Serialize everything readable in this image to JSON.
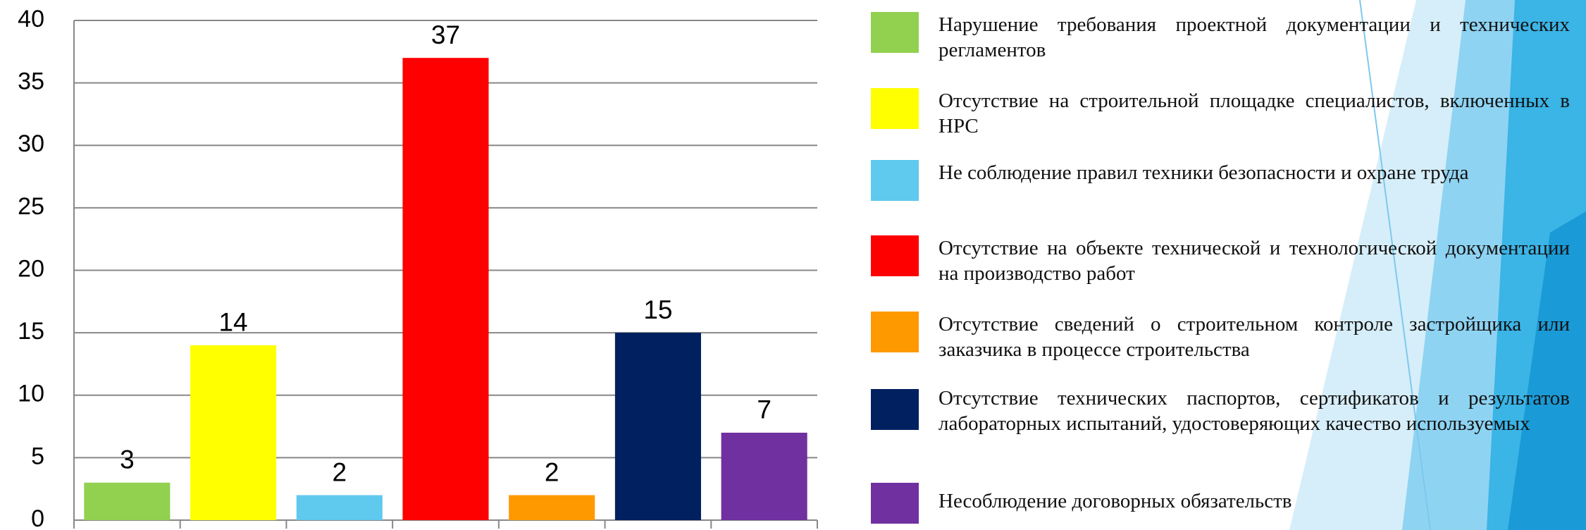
{
  "chart_data": {
    "type": "bar",
    "categories": [
      null,
      null,
      null,
      null,
      null,
      null,
      null
    ],
    "values": [
      3,
      14,
      2,
      37,
      2,
      15,
      7
    ],
    "colors": [
      "#92d050",
      "#ffff00",
      "#5fc9ee",
      "#ff0000",
      "#ff9900",
      "#002060",
      "#7030a0"
    ],
    "legend_labels": [
      "Нарушение требования проектной документации и технических регламентов",
      "Отсутствие на строительной площадке специалистов, включенных в НРС",
      "Не соблюдение правил техники безопасности и охране труда",
      "Отсутствие на объекте технической и технологической документации на производство работ",
      "Отсутствие сведений о строительном контроле застройщика или заказчика в процессе строительства",
      "Отсутствие технических паспортов, сертификатов и результатов лабораторных испытаний, удостоверяющих качество используемых",
      "Несоблюдение договорных обязательств"
    ],
    "ylim": [
      0,
      40
    ],
    "yticks": [
      0,
      5,
      10,
      15,
      20,
      25,
      30,
      35,
      40
    ],
    "grid": true
  }
}
